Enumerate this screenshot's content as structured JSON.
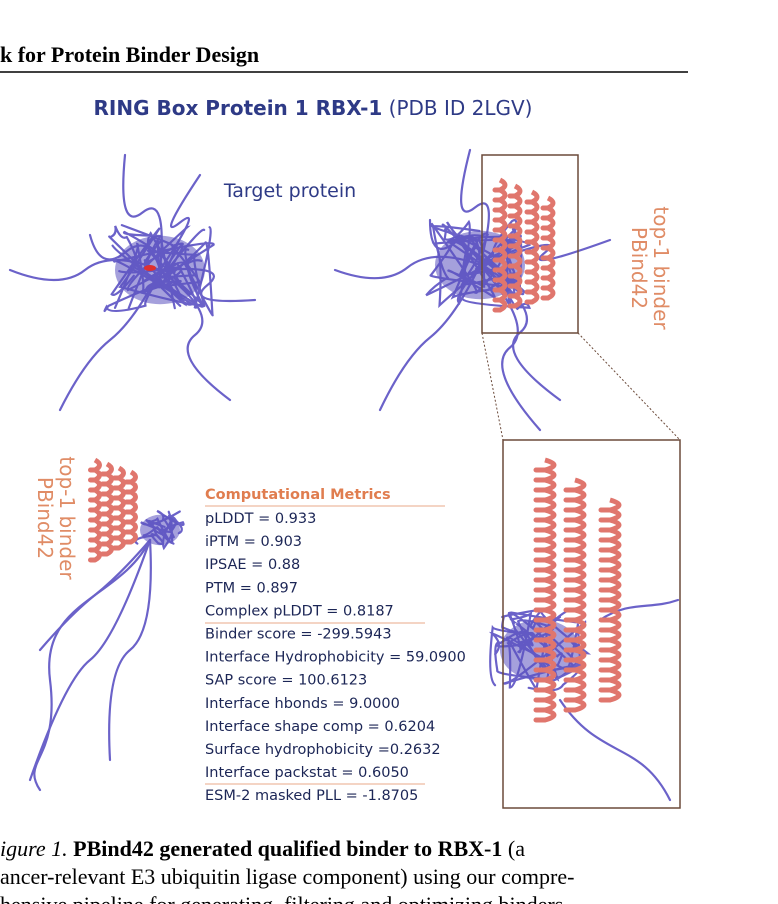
{
  "header": {
    "title": "k for Protein Binder Design"
  },
  "figure": {
    "title_bold": "RING Box Protein 1 RBX-1",
    "title_rest": "(PDB ID 2LGV)",
    "target_label": "Target protein",
    "binder_label_right": [
      "PBind42",
      "top-1 binder"
    ],
    "binder_label_left": [
      "PBind42",
      "top-1 binder"
    ],
    "metrics": {
      "heading": "Computational Metrics",
      "lines": [
        "pLDDT = 0.933",
        "iPTM = 0.903",
        "IPSAE = 0.88",
        "PTM = 0.897",
        "Complex pLDDT = 0.8187",
        "Binder score = -299.5943",
        "Interface Hydrophobicity = 59.0900",
        "SAP score = 100.6123",
        "Interface hbonds = 9.0000",
        "Interface shape comp = 0.6204",
        "Surface hydrophobicity =0.2632",
        "Interface packstat = 0.6050",
        "ESM-2 masked PLL = -1.8705"
      ]
    }
  },
  "caption": {
    "label": "igure 1.",
    "bold": "PBind42 generated qualified binder to RBX-1",
    "lines": [
      "(a",
      "ancer-relevant E3 ubiquitin ligase component) using our compre-",
      "hensive pipeline for generating, filtering and optimizing binders"
    ]
  }
}
